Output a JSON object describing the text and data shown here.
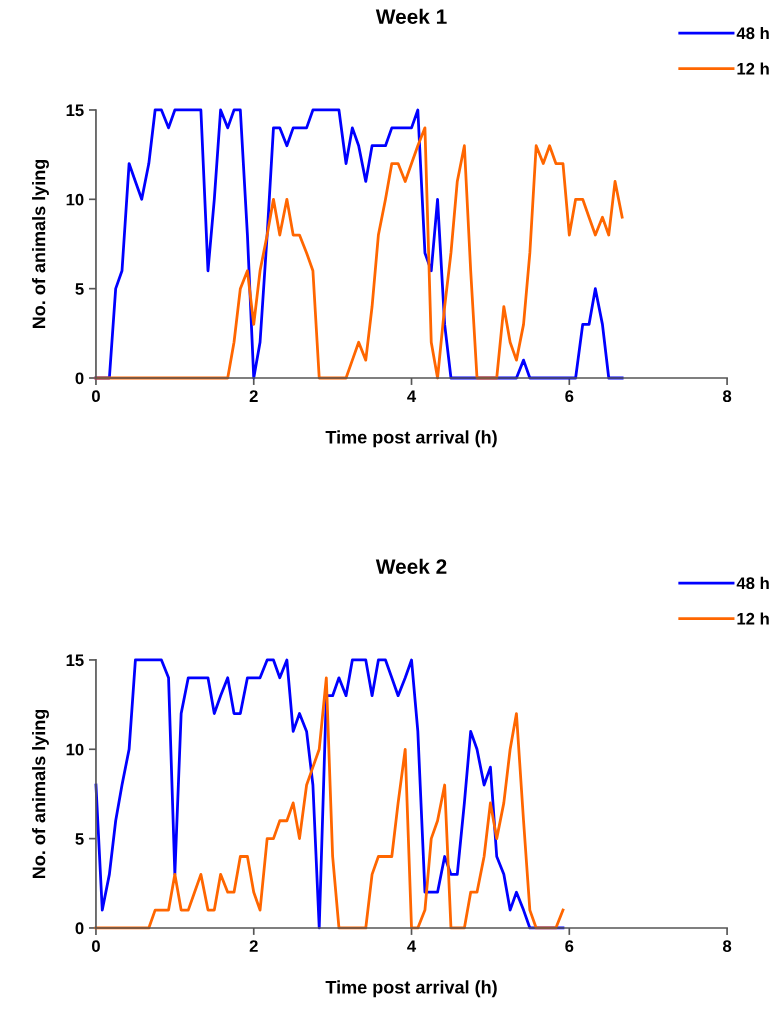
{
  "chart_data": [
    {
      "type": "line",
      "title": "Week 1",
      "xlabel": "Time post arrival (h)",
      "ylabel": "No. of animals lying",
      "xlim": [
        0,
        8
      ],
      "xticks": [
        0,
        2,
        4,
        6,
        8
      ],
      "ylim": [
        0,
        15
      ],
      "yticks": [
        0,
        5,
        10,
        15
      ],
      "legend": "top right",
      "marker": "none",
      "line_style": "solid",
      "grid": false,
      "series": [
        {
          "name": "48 h",
          "color": "#0000ff",
          "x": [
            0,
            0.08,
            0.17,
            0.25,
            0.33,
            0.42,
            0.5,
            0.58,
            0.67,
            0.75,
            0.83,
            0.92,
            1,
            1.08,
            1.17,
            1.25,
            1.33,
            1.42,
            1.5,
            1.58,
            1.67,
            1.75,
            1.83,
            1.92,
            2,
            2.08,
            2.17,
            2.25,
            2.33,
            2.42,
            2.5,
            2.58,
            2.67,
            2.75,
            2.83,
            2.92,
            3,
            3.08,
            3.17,
            3.25,
            3.33,
            3.42,
            3.5,
            3.58,
            3.67,
            3.75,
            3.83,
            3.92,
            4,
            4.08,
            4.17,
            4.25,
            4.33,
            4.42,
            4.5,
            4.58,
            4.67,
            4.75,
            4.83,
            4.92,
            5,
            5.08,
            5.17,
            5.25,
            5.33,
            5.42,
            5.5,
            5.58,
            5.67,
            5.75,
            5.83,
            5.92,
            6,
            6.08,
            6.17,
            6.25,
            6.33,
            6.42,
            6.5,
            6.58,
            6.67
          ],
          "values": [
            0,
            0,
            0,
            5,
            6,
            12,
            11,
            10,
            12,
            15,
            15,
            14,
            15,
            15,
            15,
            15,
            15,
            6,
            10,
            15,
            14,
            15,
            15,
            8,
            0,
            2,
            8,
            14,
            14,
            13,
            14,
            14,
            14,
            15,
            15,
            15,
            15,
            15,
            12,
            14,
            13,
            11,
            13,
            13,
            13,
            14,
            14,
            14,
            14,
            15,
            7,
            6,
            10,
            3,
            0,
            0,
            0,
            0,
            0,
            0,
            0,
            0,
            0,
            0,
            0,
            1,
            0,
            0,
            0,
            0,
            0,
            0,
            0,
            0,
            3,
            3,
            5,
            3,
            0,
            0,
            0
          ]
        },
        {
          "name": "12 h",
          "color": "#ff6600",
          "x": [
            0,
            0.08,
            0.17,
            0.25,
            0.33,
            0.42,
            0.5,
            0.58,
            0.67,
            0.75,
            0.83,
            0.92,
            1,
            1.08,
            1.17,
            1.25,
            1.33,
            1.42,
            1.5,
            1.58,
            1.67,
            1.75,
            1.83,
            1.92,
            2,
            2.08,
            2.17,
            2.25,
            2.33,
            2.42,
            2.5,
            2.58,
            2.67,
            2.75,
            2.83,
            2.92,
            3,
            3.08,
            3.17,
            3.25,
            3.33,
            3.42,
            3.5,
            3.58,
            3.67,
            3.75,
            3.83,
            3.92,
            4,
            4.08,
            4.17,
            4.25,
            4.33,
            4.42,
            4.5,
            4.58,
            4.67,
            4.75,
            4.83,
            4.92,
            5,
            5.08,
            5.17,
            5.25,
            5.33,
            5.42,
            5.5,
            5.58,
            5.67,
            5.75,
            5.83,
            5.92,
            6,
            6.08,
            6.17,
            6.25,
            6.33,
            6.42,
            6.5,
            6.58,
            6.67
          ],
          "values": [
            0,
            0,
            0,
            0,
            0,
            0,
            0,
            0,
            0,
            0,
            0,
            0,
            0,
            0,
            0,
            0,
            0,
            0,
            0,
            0,
            0,
            2,
            5,
            6,
            3,
            6,
            8,
            10,
            8,
            10,
            8,
            8,
            7,
            6,
            0,
            0,
            0,
            0,
            0,
            1,
            2,
            1,
            4,
            8,
            10,
            12,
            12,
            11,
            12,
            13,
            14,
            2,
            0,
            4,
            7,
            11,
            13,
            6,
            0,
            0,
            0,
            0,
            4,
            2,
            1,
            3,
            7,
            13,
            12,
            13,
            12,
            12,
            8,
            10,
            10,
            9,
            8,
            9,
            8,
            11,
            9
          ]
        }
      ]
    },
    {
      "type": "line",
      "title": "Week 2",
      "xlabel": "Time post arrival (h)",
      "ylabel": "No. of animals lying",
      "xlim": [
        0,
        8
      ],
      "xticks": [
        0,
        2,
        4,
        6,
        8
      ],
      "ylim": [
        0,
        15
      ],
      "yticks": [
        0,
        5,
        10,
        15
      ],
      "legend": "top right",
      "marker": "none",
      "line_style": "solid",
      "grid": false,
      "series": [
        {
          "name": "48 h",
          "color": "#0000ff",
          "x": [
            0,
            0.08,
            0.17,
            0.25,
            0.33,
            0.42,
            0.5,
            0.58,
            0.67,
            0.75,
            0.83,
            0.92,
            1,
            1.08,
            1.17,
            1.25,
            1.33,
            1.42,
            1.5,
            1.58,
            1.67,
            1.75,
            1.83,
            1.92,
            2,
            2.08,
            2.17,
            2.25,
            2.33,
            2.42,
            2.5,
            2.58,
            2.67,
            2.75,
            2.83,
            2.92,
            3,
            3.08,
            3.17,
            3.25,
            3.33,
            3.42,
            3.5,
            3.58,
            3.67,
            3.75,
            3.83,
            3.92,
            4,
            4.08,
            4.17,
            4.25,
            4.33,
            4.42,
            4.5,
            4.58,
            4.67,
            4.75,
            4.83,
            4.92,
            5,
            5.08,
            5.17,
            5.25,
            5.33,
            5.42,
            5.5,
            5.58,
            5.67,
            5.75,
            5.83,
            5.92
          ],
          "values": [
            8,
            1,
            3,
            6,
            8,
            10,
            15,
            15,
            15,
            15,
            15,
            14,
            3,
            12,
            14,
            14,
            14,
            14,
            12,
            13,
            14,
            12,
            12,
            14,
            14,
            14,
            15,
            15,
            14,
            15,
            11,
            12,
            11,
            8,
            0,
            13,
            13,
            14,
            13,
            15,
            15,
            15,
            13,
            15,
            15,
            14,
            13,
            14,
            15,
            11,
            2,
            2,
            2,
            4,
            3,
            3,
            7,
            11,
            10,
            8,
            9,
            4,
            3,
            1,
            2,
            1,
            0,
            0,
            0,
            0,
            0,
            0
          ]
        },
        {
          "name": "12 h",
          "color": "#ff6600",
          "x": [
            0,
            0.08,
            0.17,
            0.25,
            0.33,
            0.42,
            0.5,
            0.58,
            0.67,
            0.75,
            0.83,
            0.92,
            1,
            1.08,
            1.17,
            1.25,
            1.33,
            1.42,
            1.5,
            1.58,
            1.67,
            1.75,
            1.83,
            1.92,
            2,
            2.08,
            2.17,
            2.25,
            2.33,
            2.42,
            2.5,
            2.58,
            2.67,
            2.75,
            2.83,
            2.92,
            3,
            3.08,
            3.17,
            3.25,
            3.33,
            3.42,
            3.5,
            3.58,
            3.67,
            3.75,
            3.83,
            3.92,
            4,
            4.08,
            4.17,
            4.25,
            4.33,
            4.42,
            4.5,
            4.58,
            4.67,
            4.75,
            4.83,
            4.92,
            5,
            5.08,
            5.17,
            5.25,
            5.33,
            5.42,
            5.5,
            5.58,
            5.67,
            5.75,
            5.83,
            5.92
          ],
          "values": [
            0,
            0,
            0,
            0,
            0,
            0,
            0,
            0,
            0,
            1,
            1,
            1,
            3,
            1,
            1,
            2,
            3,
            1,
            1,
            3,
            2,
            2,
            4,
            4,
            2,
            1,
            5,
            5,
            6,
            6,
            7,
            5,
            8,
            9,
            10,
            14,
            4,
            0,
            0,
            0,
            0,
            0,
            3,
            4,
            4,
            4,
            7,
            10,
            0,
            0,
            1,
            5,
            6,
            8,
            0,
            0,
            0,
            2,
            2,
            4,
            7,
            5,
            7,
            10,
            12,
            6,
            1,
            0,
            0,
            0,
            0,
            1
          ]
        }
      ]
    }
  ]
}
